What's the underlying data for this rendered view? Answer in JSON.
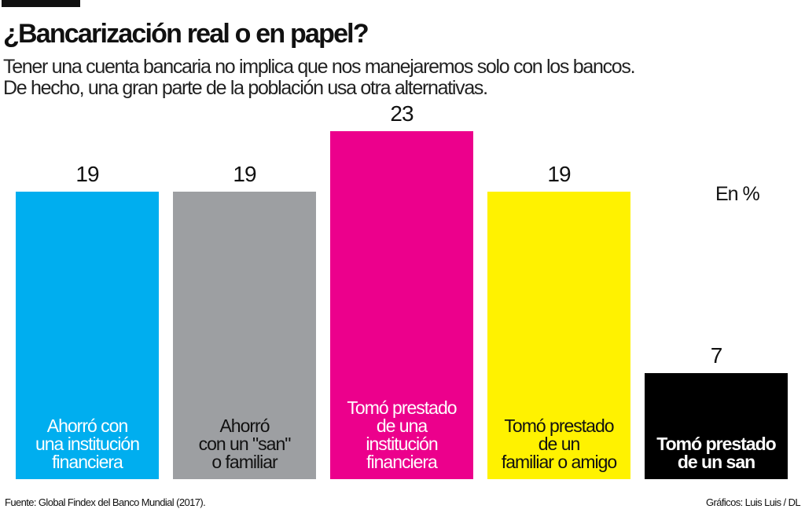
{
  "header": {
    "title": "¿Bancarización real o en papel?",
    "subtitle": "Tener una cuenta bancaria no implica que nos manejaremos solo con los bancos. De hecho, una gran parte de la población usa otra alternativas."
  },
  "footer": {
    "source": "Fuente: Global Findex del Banco Mundial (2017).",
    "credit": "Gráficos: Luis Luis / DL"
  },
  "chart_data": {
    "type": "bar",
    "unit_label": "En %",
    "categories": [
      [
        "Ahorró con",
        "una institución",
        "financiera"
      ],
      [
        "Ahorró",
        "con un \"san\"",
        "o familiar"
      ],
      [
        "Tomó prestado",
        "de una",
        "institución",
        "financiera"
      ],
      [
        "Tomó prestado",
        "de un",
        "familiar o amigo"
      ],
      [
        "Tomó prestado",
        "de un san"
      ]
    ],
    "values": [
      19,
      19,
      23,
      19,
      7
    ],
    "value_labels": [
      "19",
      "19",
      "23",
      "19",
      "7"
    ],
    "colors": [
      "#00aeef",
      "#9d9fa2",
      "#ec008c",
      "#fff200",
      "#000000"
    ],
    "label_colors": [
      "#ffffff",
      "#111111",
      "#ffffff",
      "#111111",
      "#ffffff"
    ],
    "grid": false
  }
}
